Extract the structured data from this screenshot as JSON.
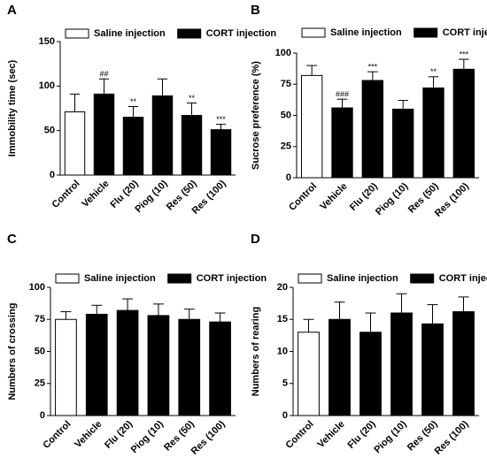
{
  "chart_data": [
    {
      "type": "bar",
      "panel": "A",
      "ylabel": "Immobility time (sec)",
      "categories": [
        "Control",
        "Vehicle",
        "Flu (20)",
        "Piog (10)",
        "Res (50)",
        "Res (100)"
      ],
      "series": [
        {
          "name": "Saline injection",
          "color": "#ffffff",
          "values": [
            71,
            null,
            null,
            null,
            null,
            null
          ],
          "errors": [
            20,
            null,
            null,
            null,
            null,
            null
          ]
        },
        {
          "name": "CORT injection",
          "color": "#000000",
          "values": [
            null,
            91,
            65,
            89,
            67,
            51
          ],
          "errors": [
            null,
            17,
            12,
            19,
            14,
            6
          ]
        }
      ],
      "annotations": [
        null,
        "##",
        "**",
        null,
        "**",
        "***"
      ],
      "ylim": [
        0,
        150
      ],
      "yticks": [
        0,
        50,
        100,
        150
      ]
    },
    {
      "type": "bar",
      "panel": "B",
      "ylabel": "Sucrose preference (%)",
      "categories": [
        "Control",
        "Vehicle",
        "Flu (20)",
        "Piog (10)",
        "Res (50)",
        "Res (100)"
      ],
      "series": [
        {
          "name": "Saline injection",
          "color": "#ffffff",
          "values": [
            82,
            null,
            null,
            null,
            null,
            null
          ],
          "errors": [
            8,
            null,
            null,
            null,
            null,
            null
          ]
        },
        {
          "name": "CORT injection",
          "color": "#000000",
          "values": [
            null,
            56,
            78,
            55,
            72,
            87
          ],
          "errors": [
            null,
            7,
            7,
            7,
            9,
            8
          ]
        }
      ],
      "annotations": [
        null,
        "###",
        "***",
        null,
        "**",
        "***"
      ],
      "ylim": [
        0,
        100
      ],
      "yticks": [
        0,
        25,
        50,
        75,
        100
      ]
    },
    {
      "type": "bar",
      "panel": "C",
      "ylabel": "Numbers of crossing",
      "categories": [
        "Control",
        "Vehicle",
        "Flu (20)",
        "Piog (10)",
        "Res (50)",
        "Res (100)"
      ],
      "series": [
        {
          "name": "Saline injection",
          "color": "#ffffff",
          "values": [
            75,
            null,
            null,
            null,
            null,
            null
          ],
          "errors": [
            6,
            null,
            null,
            null,
            null,
            null
          ]
        },
        {
          "name": "CORT injection",
          "color": "#000000",
          "values": [
            null,
            79,
            82,
            78,
            75,
            73
          ],
          "errors": [
            null,
            7,
            9,
            9,
            8,
            7
          ]
        }
      ],
      "ylim": [
        0,
        100
      ],
      "yticks": [
        0,
        25,
        50,
        75,
        100
      ]
    },
    {
      "type": "bar",
      "panel": "D",
      "ylabel": "Numbers of rearing",
      "categories": [
        "Control",
        "Vehicle",
        "Flu (20)",
        "Piog (10)",
        "Res (50)",
        "Res (100)"
      ],
      "series": [
        {
          "name": "Saline injection",
          "color": "#ffffff",
          "values": [
            13,
            null,
            null,
            null,
            null,
            null
          ],
          "errors": [
            2,
            null,
            null,
            null,
            null,
            null
          ]
        },
        {
          "name": "CORT injection",
          "color": "#000000",
          "values": [
            null,
            15,
            13,
            16,
            14.3,
            16.2
          ],
          "errors": [
            null,
            2.7,
            3,
            3,
            3,
            2.3
          ]
        }
      ],
      "ylim": [
        0,
        20
      ],
      "yticks": [
        0,
        5,
        10,
        15,
        20
      ]
    }
  ]
}
